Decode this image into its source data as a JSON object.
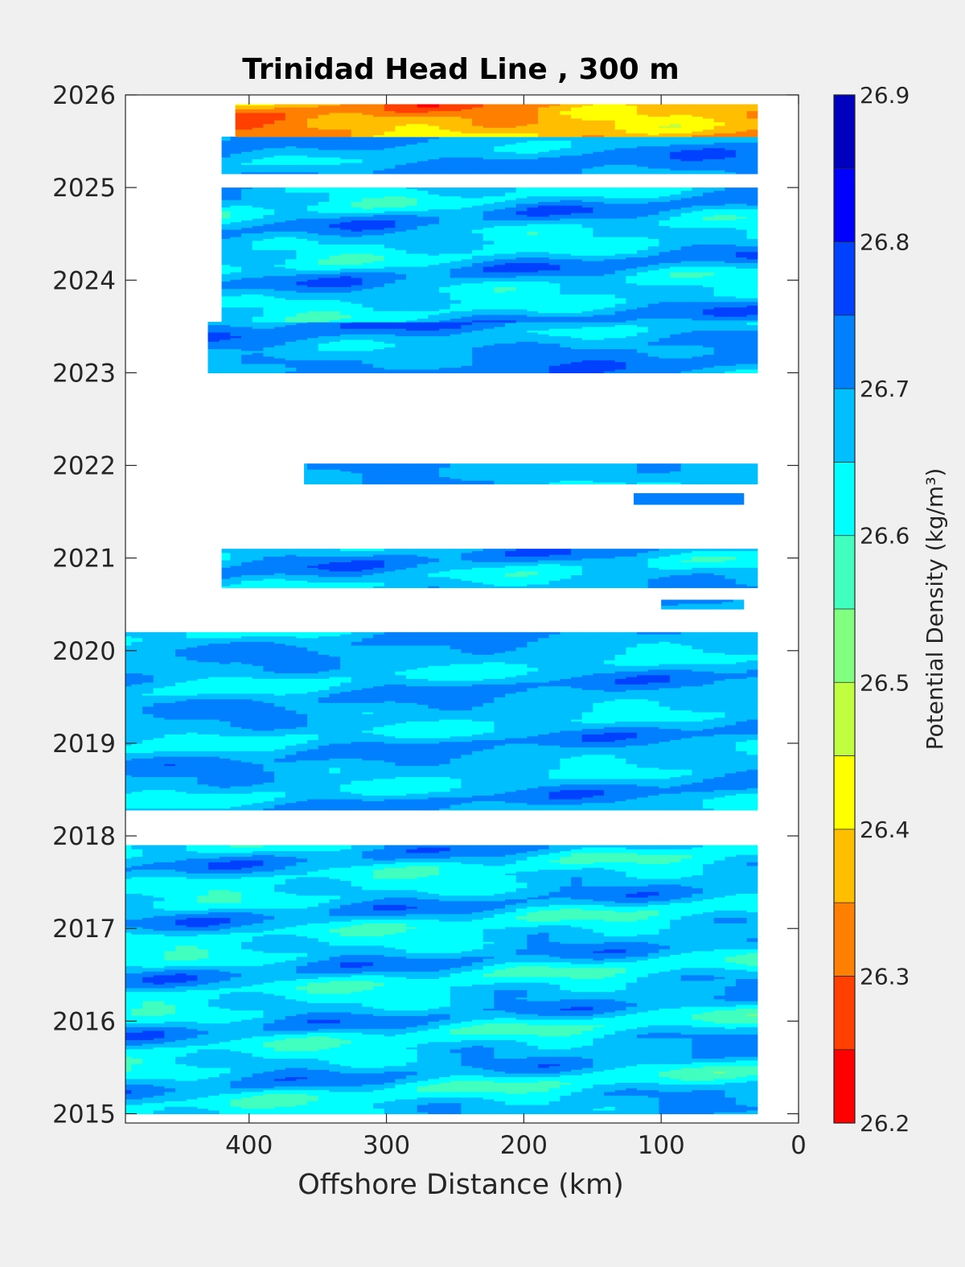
{
  "chart_data": {
    "type": "heatmap",
    "title": "Trinidad Head Line , 300 m",
    "xlabel": "Offshore Distance (km)",
    "ylabel": "",
    "x_axis": {
      "range": [
        0,
        490
      ],
      "reversed": true,
      "ticks": [
        400,
        300,
        200,
        100,
        0
      ]
    },
    "y_axis": {
      "range": [
        2014.9,
        2026.0
      ],
      "ticks": [
        2015,
        2016,
        2017,
        2018,
        2019,
        2020,
        2021,
        2022,
        2023,
        2024,
        2025,
        2026
      ]
    },
    "colorbar": {
      "label": "Potential Density (kg/m³)",
      "range": [
        26.2,
        26.9
      ],
      "ticks": [
        26.2,
        26.3,
        26.4,
        26.5,
        26.6,
        26.7,
        26.8,
        26.9
      ],
      "levels": [
        26.2,
        26.25,
        26.3,
        26.35,
        26.4,
        26.45,
        26.5,
        26.55,
        26.6,
        26.65,
        26.7,
        26.75,
        26.8,
        26.85,
        26.9
      ],
      "colors": [
        "#ff0000",
        "#ff4000",
        "#ff8000",
        "#ffbf00",
        "#ffff00",
        "#bfff40",
        "#80ff80",
        "#40ffbf",
        "#00ffff",
        "#00bfff",
        "#0080ff",
        "#0040ff",
        "#0000ff",
        "#0000bf"
      ]
    },
    "grid": false,
    "legend": "colorbar-right",
    "segments": [
      {
        "t0": 2015.0,
        "t1": 2017.9,
        "x_far": 490,
        "x_near": 30,
        "base": 26.66,
        "amp": 0.09,
        "seed": 1
      },
      {
        "t0": 2018.28,
        "t1": 2020.2,
        "x_far": 490,
        "x_near": 30,
        "base": 26.68,
        "amp": 0.07,
        "seed": 2
      },
      {
        "t0": 2020.45,
        "t1": 2020.55,
        "x_far": 100,
        "x_near": 40,
        "base": 26.71,
        "amp": 0.04,
        "seed": 3
      },
      {
        "t0": 2020.68,
        "t1": 2021.1,
        "x_far": 420,
        "x_near": 30,
        "base": 26.68,
        "amp": 0.08,
        "seed": 4
      },
      {
        "t0": 2021.58,
        "t1": 2021.7,
        "x_far": 120,
        "x_near": 40,
        "base": 26.7,
        "amp": 0.03,
        "seed": 5
      },
      {
        "t0": 2021.8,
        "t1": 2022.02,
        "x_far": 360,
        "x_near": 30,
        "base": 26.68,
        "amp": 0.05,
        "seed": 6
      },
      {
        "t0": 2023.0,
        "t1": 2023.55,
        "x_far": 430,
        "x_near": 30,
        "base": 26.7,
        "amp": 0.07,
        "seed": 7
      },
      {
        "t0": 2023.55,
        "t1": 2025.0,
        "x_far": 420,
        "x_near": 30,
        "base": 26.67,
        "amp": 0.09,
        "seed": 8
      },
      {
        "t0": 2025.15,
        "t1": 2025.55,
        "x_far": 420,
        "x_near": 30,
        "base": 26.7,
        "amp": 0.06,
        "seed": 9
      },
      {
        "t0": 2025.55,
        "t1": 2025.9,
        "x_far": 410,
        "x_near": 30,
        "base": 26.36,
        "amp": 0.1,
        "seed": 10
      }
    ]
  }
}
